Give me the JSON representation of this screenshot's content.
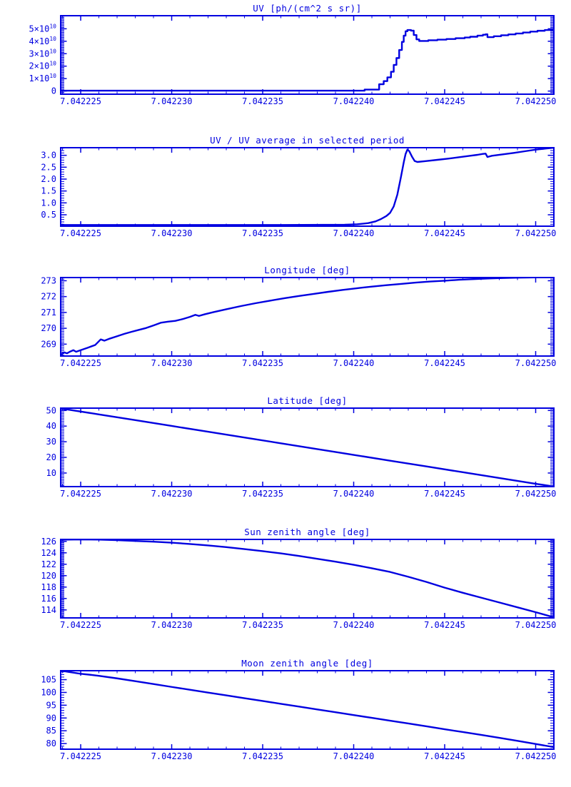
{
  "page": {
    "background": "#ffffff",
    "accent": "#0000e0"
  },
  "x_axis": {
    "range": [
      2239,
      2510
    ],
    "tick_values": [
      2250,
      2300,
      2350,
      2400,
      2450,
      2500
    ],
    "tick_labels": [
      "7.042225",
      "7.042230",
      "7.042235",
      "7.042240",
      "7.042245",
      "7.042250"
    ],
    "minor_step": 10
  },
  "chart_data": [
    {
      "type": "line",
      "title": "UV [ph/(cm^2 s sr)]",
      "y_unit": "1e10 ph/(cm^2 s sr)",
      "grid": false,
      "legend": "none",
      "step": true,
      "ylim": [
        -0.25,
        6.05
      ],
      "y_minor": 0.1,
      "yticks": [
        {
          "v": 0,
          "base": "0"
        },
        {
          "v": 1,
          "base": "1×10",
          "sup": "10"
        },
        {
          "v": 2,
          "base": "2×10",
          "sup": "10"
        },
        {
          "v": 3,
          "base": "3×10",
          "sup": "10"
        },
        {
          "v": 4,
          "base": "4×10",
          "sup": "10"
        },
        {
          "v": 5,
          "base": "5×10",
          "sup": "10"
        }
      ],
      "points": [
        [
          2239,
          0.03
        ],
        [
          2300,
          0.03
        ],
        [
          2360,
          0.03
        ],
        [
          2400,
          0.03
        ],
        [
          2406,
          0.12
        ],
        [
          2414,
          0.55
        ],
        [
          2416.5,
          0.8
        ],
        [
          2418.5,
          1.1
        ],
        [
          2420.5,
          1.55
        ],
        [
          2422,
          2.1
        ],
        [
          2423.5,
          2.65
        ],
        [
          2425,
          3.3
        ],
        [
          2426.5,
          3.95
        ],
        [
          2427.5,
          4.45
        ],
        [
          2428.5,
          4.8
        ],
        [
          2429.5,
          4.9
        ],
        [
          2431.5,
          4.85
        ],
        [
          2433,
          4.5
        ],
        [
          2434.5,
          4.15
        ],
        [
          2436,
          4.02
        ],
        [
          2441,
          4.08
        ],
        [
          2446,
          4.13
        ],
        [
          2451,
          4.18
        ],
        [
          2456,
          4.24
        ],
        [
          2461,
          4.3
        ],
        [
          2464,
          4.36
        ],
        [
          2468,
          4.45
        ],
        [
          2471,
          4.52
        ],
        [
          2472.5,
          4.56
        ],
        [
          2473.5,
          4.33
        ],
        [
          2477,
          4.4
        ],
        [
          2481,
          4.48
        ],
        [
          2485,
          4.55
        ],
        [
          2489,
          4.62
        ],
        [
          2493,
          4.7
        ],
        [
          2497,
          4.77
        ],
        [
          2501,
          4.84
        ],
        [
          2505,
          4.9
        ],
        [
          2510,
          4.95
        ]
      ]
    },
    {
      "type": "line",
      "title": "UV / UV average in selected period",
      "y_unit": "ratio",
      "grid": false,
      "legend": "none",
      "step": false,
      "ylim": [
        0.02,
        3.32
      ],
      "y_minor": 0.1,
      "yticks": [
        {
          "v": 0.5,
          "base": "0.5"
        },
        {
          "v": 1.0,
          "base": "1.0"
        },
        {
          "v": 1.5,
          "base": "1.5"
        },
        {
          "v": 2.0,
          "base": "2.0"
        },
        {
          "v": 2.5,
          "base": "2.5"
        },
        {
          "v": 3.0,
          "base": "3.0"
        }
      ],
      "points": [
        [
          2239,
          0.07
        ],
        [
          2300,
          0.07
        ],
        [
          2360,
          0.07
        ],
        [
          2395,
          0.08
        ],
        [
          2402,
          0.1
        ],
        [
          2408,
          0.15
        ],
        [
          2412,
          0.22
        ],
        [
          2415,
          0.32
        ],
        [
          2418,
          0.45
        ],
        [
          2420,
          0.58
        ],
        [
          2422,
          0.85
        ],
        [
          2424,
          1.35
        ],
        [
          2426,
          2.1
        ],
        [
          2427.5,
          2.7
        ],
        [
          2428.5,
          3.05
        ],
        [
          2429.5,
          3.24
        ],
        [
          2430.5,
          3.18
        ],
        [
          2432,
          2.95
        ],
        [
          2433.5,
          2.76
        ],
        [
          2435,
          2.72
        ],
        [
          2440,
          2.76
        ],
        [
          2446,
          2.81
        ],
        [
          2452,
          2.86
        ],
        [
          2458,
          2.92
        ],
        [
          2464,
          2.98
        ],
        [
          2468,
          3.02
        ],
        [
          2471,
          3.06
        ],
        [
          2472.5,
          3.07
        ],
        [
          2473.5,
          2.93
        ],
        [
          2476,
          2.98
        ],
        [
          2482,
          3.04
        ],
        [
          2488,
          3.1
        ],
        [
          2494,
          3.17
        ],
        [
          2500,
          3.24
        ],
        [
          2505,
          3.28
        ],
        [
          2510,
          3.32
        ]
      ]
    },
    {
      "type": "line",
      "title": "Longitude [deg]",
      "y_unit": "deg",
      "grid": false,
      "legend": "none",
      "step": false,
      "ylim": [
        268.25,
        273.2
      ],
      "y_minor": 0.1,
      "yticks": [
        {
          "v": 269,
          "base": "269"
        },
        {
          "v": 270,
          "base": "270"
        },
        {
          "v": 271,
          "base": "271"
        },
        {
          "v": 272,
          "base": "272"
        },
        {
          "v": 273,
          "base": "273"
        }
      ],
      "points": [
        [
          2239,
          268.35
        ],
        [
          2241,
          268.48
        ],
        [
          2242.5,
          268.42
        ],
        [
          2244,
          268.52
        ],
        [
          2246,
          268.62
        ],
        [
          2247.5,
          268.52
        ],
        [
          2250,
          268.62
        ],
        [
          2254,
          268.78
        ],
        [
          2258,
          268.95
        ],
        [
          2261,
          269.3
        ],
        [
          2263,
          269.22
        ],
        [
          2266,
          269.35
        ],
        [
          2270,
          269.5
        ],
        [
          2274,
          269.65
        ],
        [
          2278,
          269.78
        ],
        [
          2282,
          269.9
        ],
        [
          2286,
          270.02
        ],
        [
          2290,
          270.18
        ],
        [
          2294,
          270.35
        ],
        [
          2298,
          270.42
        ],
        [
          2302,
          270.47
        ],
        [
          2306,
          270.58
        ],
        [
          2310,
          270.72
        ],
        [
          2313,
          270.85
        ],
        [
          2315,
          270.78
        ],
        [
          2318,
          270.88
        ],
        [
          2323,
          271.02
        ],
        [
          2330,
          271.2
        ],
        [
          2338,
          271.4
        ],
        [
          2346,
          271.58
        ],
        [
          2354,
          271.74
        ],
        [
          2362,
          271.9
        ],
        [
          2370,
          272.04
        ],
        [
          2378,
          272.17
        ],
        [
          2386,
          272.3
        ],
        [
          2394,
          272.42
        ],
        [
          2402,
          272.53
        ],
        [
          2410,
          272.63
        ],
        [
          2418,
          272.72
        ],
        [
          2426,
          272.8
        ],
        [
          2434,
          272.88
        ],
        [
          2442,
          272.95
        ],
        [
          2450,
          273.0
        ],
        [
          2458,
          273.06
        ],
        [
          2466,
          273.1
        ],
        [
          2474,
          273.14
        ],
        [
          2482,
          273.17
        ],
        [
          2490,
          273.19
        ],
        [
          2500,
          273.21
        ],
        [
          2510,
          273.22
        ]
      ]
    },
    {
      "type": "line",
      "title": "Latitude [deg]",
      "y_unit": "deg",
      "grid": false,
      "legend": "none",
      "step": false,
      "ylim": [
        1.3,
        51.5
      ],
      "y_minor": 1,
      "yticks": [
        {
          "v": 10,
          "base": "10"
        },
        {
          "v": 20,
          "base": "20"
        },
        {
          "v": 30,
          "base": "30"
        },
        {
          "v": 40,
          "base": "40"
        },
        {
          "v": 50,
          "base": "50"
        }
      ],
      "points": [
        [
          2239,
          51.3
        ],
        [
          2260,
          47.5
        ],
        [
          2280,
          43.8
        ],
        [
          2300,
          40.1
        ],
        [
          2320,
          36.4
        ],
        [
          2340,
          32.7
        ],
        [
          2360,
          29.0
        ],
        [
          2380,
          25.3
        ],
        [
          2400,
          21.6
        ],
        [
          2420,
          17.9
        ],
        [
          2440,
          14.2
        ],
        [
          2460,
          10.5
        ],
        [
          2480,
          6.8
        ],
        [
          2500,
          3.1
        ],
        [
          2510,
          1.4
        ]
      ]
    },
    {
      "type": "line",
      "title": "Sun zenith angle [deg]",
      "y_unit": "deg",
      "grid": false,
      "legend": "none",
      "step": false,
      "ylim": [
        112.6,
        126.35
      ],
      "y_minor": 0.2,
      "yticks": [
        {
          "v": 114,
          "base": "114"
        },
        {
          "v": 116,
          "base": "116"
        },
        {
          "v": 118,
          "base": "118"
        },
        {
          "v": 120,
          "base": "120"
        },
        {
          "v": 122,
          "base": "122"
        },
        {
          "v": 124,
          "base": "124"
        },
        {
          "v": 126,
          "base": "126"
        }
      ],
      "points": [
        [
          2239,
          126.3
        ],
        [
          2250,
          126.35
        ],
        [
          2260,
          126.32
        ],
        [
          2270,
          126.22
        ],
        [
          2280,
          126.08
        ],
        [
          2290,
          125.95
        ],
        [
          2300,
          125.78
        ],
        [
          2310,
          125.55
        ],
        [
          2320,
          125.3
        ],
        [
          2330,
          125.0
        ],
        [
          2340,
          124.65
        ],
        [
          2350,
          124.3
        ],
        [
          2360,
          123.9
        ],
        [
          2370,
          123.45
        ],
        [
          2380,
          122.95
        ],
        [
          2390,
          122.45
        ],
        [
          2400,
          121.9
        ],
        [
          2410,
          121.3
        ],
        [
          2420,
          120.65
        ],
        [
          2430,
          119.8
        ],
        [
          2440,
          118.9
        ],
        [
          2450,
          117.9
        ],
        [
          2460,
          117.0
        ],
        [
          2470,
          116.15
        ],
        [
          2480,
          115.3
        ],
        [
          2490,
          114.45
        ],
        [
          2500,
          113.6
        ],
        [
          2510,
          112.7
        ]
      ]
    },
    {
      "type": "line",
      "title": "Moon zenith angle [deg]",
      "y_unit": "deg",
      "grid": false,
      "legend": "none",
      "step": false,
      "ylim": [
        77.8,
        108.5
      ],
      "y_minor": 1,
      "yticks": [
        {
          "v": 80,
          "base": "80"
        },
        {
          "v": 85,
          "base": "85"
        },
        {
          "v": 90,
          "base": "90"
        },
        {
          "v": 95,
          "base": "95"
        },
        {
          "v": 100,
          "base": "100"
        },
        {
          "v": 105,
          "base": "105"
        }
      ],
      "points": [
        [
          2239,
          108.5
        ],
        [
          2250,
          107.3
        ],
        [
          2256,
          106.85
        ],
        [
          2260,
          106.5
        ],
        [
          2270,
          105.5
        ],
        [
          2280,
          104.4
        ],
        [
          2290,
          103.3
        ],
        [
          2300,
          102.15
        ],
        [
          2310,
          101.05
        ],
        [
          2320,
          99.95
        ],
        [
          2330,
          98.85
        ],
        [
          2340,
          97.75
        ],
        [
          2350,
          96.65
        ],
        [
          2360,
          95.55
        ],
        [
          2370,
          94.45
        ],
        [
          2380,
          93.35
        ],
        [
          2390,
          92.25
        ],
        [
          2400,
          91.15
        ],
        [
          2410,
          90.05
        ],
        [
          2420,
          88.95
        ],
        [
          2430,
          87.85
        ],
        [
          2440,
          86.75
        ],
        [
          2450,
          85.6
        ],
        [
          2460,
          84.5
        ],
        [
          2470,
          83.4
        ],
        [
          2480,
          82.25
        ],
        [
          2490,
          81.05
        ],
        [
          2500,
          79.85
        ],
        [
          2510,
          78.6
        ]
      ]
    }
  ]
}
